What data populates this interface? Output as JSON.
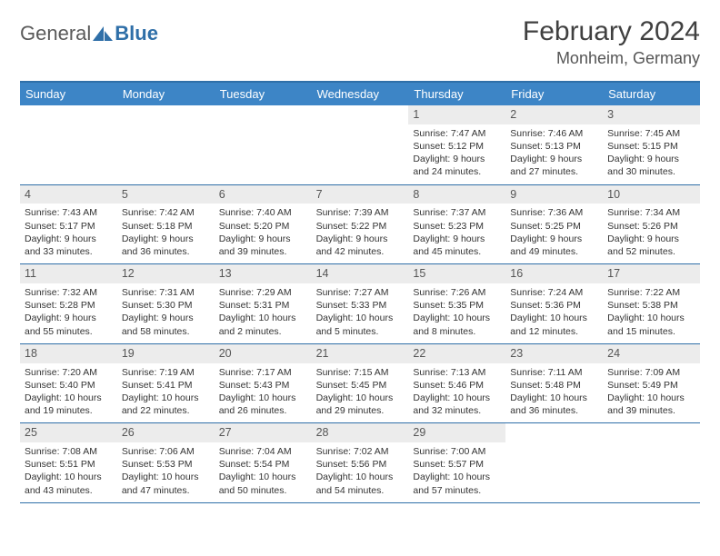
{
  "logo": {
    "text1": "General",
    "text2": "Blue"
  },
  "title": "February 2024",
  "location": "Monheim, Germany",
  "colors": {
    "header_bg": "#3d85c6",
    "border": "#2f6fa8",
    "daynum_bg": "#ececec",
    "text": "#333333",
    "title_text": "#404040"
  },
  "day_names": [
    "Sunday",
    "Monday",
    "Tuesday",
    "Wednesday",
    "Thursday",
    "Friday",
    "Saturday"
  ],
  "weeks": [
    [
      null,
      null,
      null,
      null,
      {
        "n": "1",
        "sr": "7:47 AM",
        "ss": "5:12 PM",
        "dl": "9 hours and 24 minutes."
      },
      {
        "n": "2",
        "sr": "7:46 AM",
        "ss": "5:13 PM",
        "dl": "9 hours and 27 minutes."
      },
      {
        "n": "3",
        "sr": "7:45 AM",
        "ss": "5:15 PM",
        "dl": "9 hours and 30 minutes."
      }
    ],
    [
      {
        "n": "4",
        "sr": "7:43 AM",
        "ss": "5:17 PM",
        "dl": "9 hours and 33 minutes."
      },
      {
        "n": "5",
        "sr": "7:42 AM",
        "ss": "5:18 PM",
        "dl": "9 hours and 36 minutes."
      },
      {
        "n": "6",
        "sr": "7:40 AM",
        "ss": "5:20 PM",
        "dl": "9 hours and 39 minutes."
      },
      {
        "n": "7",
        "sr": "7:39 AM",
        "ss": "5:22 PM",
        "dl": "9 hours and 42 minutes."
      },
      {
        "n": "8",
        "sr": "7:37 AM",
        "ss": "5:23 PM",
        "dl": "9 hours and 45 minutes."
      },
      {
        "n": "9",
        "sr": "7:36 AM",
        "ss": "5:25 PM",
        "dl": "9 hours and 49 minutes."
      },
      {
        "n": "10",
        "sr": "7:34 AM",
        "ss": "5:26 PM",
        "dl": "9 hours and 52 minutes."
      }
    ],
    [
      {
        "n": "11",
        "sr": "7:32 AM",
        "ss": "5:28 PM",
        "dl": "9 hours and 55 minutes."
      },
      {
        "n": "12",
        "sr": "7:31 AM",
        "ss": "5:30 PM",
        "dl": "9 hours and 58 minutes."
      },
      {
        "n": "13",
        "sr": "7:29 AM",
        "ss": "5:31 PM",
        "dl": "10 hours and 2 minutes."
      },
      {
        "n": "14",
        "sr": "7:27 AM",
        "ss": "5:33 PM",
        "dl": "10 hours and 5 minutes."
      },
      {
        "n": "15",
        "sr": "7:26 AM",
        "ss": "5:35 PM",
        "dl": "10 hours and 8 minutes."
      },
      {
        "n": "16",
        "sr": "7:24 AM",
        "ss": "5:36 PM",
        "dl": "10 hours and 12 minutes."
      },
      {
        "n": "17",
        "sr": "7:22 AM",
        "ss": "5:38 PM",
        "dl": "10 hours and 15 minutes."
      }
    ],
    [
      {
        "n": "18",
        "sr": "7:20 AM",
        "ss": "5:40 PM",
        "dl": "10 hours and 19 minutes."
      },
      {
        "n": "19",
        "sr": "7:19 AM",
        "ss": "5:41 PM",
        "dl": "10 hours and 22 minutes."
      },
      {
        "n": "20",
        "sr": "7:17 AM",
        "ss": "5:43 PM",
        "dl": "10 hours and 26 minutes."
      },
      {
        "n": "21",
        "sr": "7:15 AM",
        "ss": "5:45 PM",
        "dl": "10 hours and 29 minutes."
      },
      {
        "n": "22",
        "sr": "7:13 AM",
        "ss": "5:46 PM",
        "dl": "10 hours and 32 minutes."
      },
      {
        "n": "23",
        "sr": "7:11 AM",
        "ss": "5:48 PM",
        "dl": "10 hours and 36 minutes."
      },
      {
        "n": "24",
        "sr": "7:09 AM",
        "ss": "5:49 PM",
        "dl": "10 hours and 39 minutes."
      }
    ],
    [
      {
        "n": "25",
        "sr": "7:08 AM",
        "ss": "5:51 PM",
        "dl": "10 hours and 43 minutes."
      },
      {
        "n": "26",
        "sr": "7:06 AM",
        "ss": "5:53 PM",
        "dl": "10 hours and 47 minutes."
      },
      {
        "n": "27",
        "sr": "7:04 AM",
        "ss": "5:54 PM",
        "dl": "10 hours and 50 minutes."
      },
      {
        "n": "28",
        "sr": "7:02 AM",
        "ss": "5:56 PM",
        "dl": "10 hours and 54 minutes."
      },
      {
        "n": "29",
        "sr": "7:00 AM",
        "ss": "5:57 PM",
        "dl": "10 hours and 57 minutes."
      },
      null,
      null
    ]
  ],
  "labels": {
    "sunrise": "Sunrise:",
    "sunset": "Sunset:",
    "daylight": "Daylight:"
  }
}
